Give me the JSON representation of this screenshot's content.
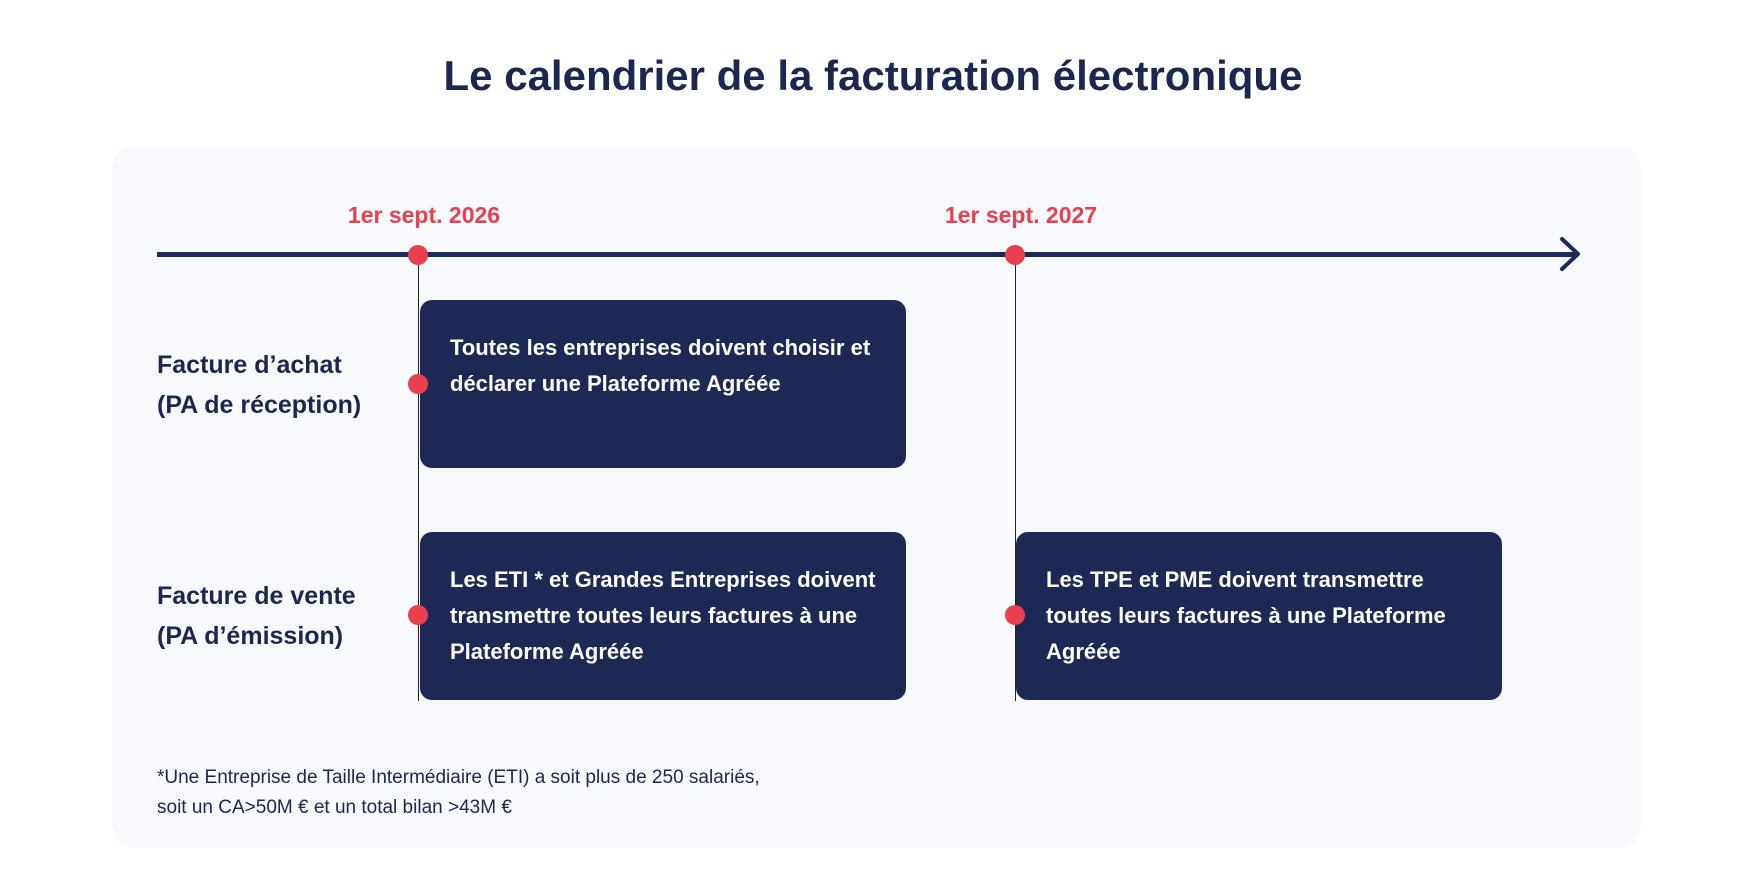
{
  "title": "Le calendrier de la facturation électronique",
  "colors": {
    "accent": "#e8404f",
    "navy": "#1d2855",
    "panel": "#f7f9fd"
  },
  "timeline": {
    "dates": [
      "1er sept. 2026",
      "1er sept. 2027"
    ]
  },
  "rows": [
    {
      "label_line1": "Facture d’achat",
      "label_line2": "(PA de réception)"
    },
    {
      "label_line1": "Facture de vente",
      "label_line2": "(PA d’émission)"
    }
  ],
  "events": [
    {
      "text": "Toutes les entreprises doivent choisir et déclarer une Plateforme Agréée"
    },
    {
      "text": "Les ETI * et Grandes Entreprises doivent transmettre toutes leurs factures à une Plateforme Agréée"
    },
    {
      "text": "Les TPE et PME doivent transmettre toutes leurs factures à une Plateforme Agréée"
    }
  ],
  "footnote": {
    "line1": "*Une Entreprise de Taille Intermédiaire (ETI) a soit plus de 250 salariés,",
    "line2": "soit un CA>50M € et un total bilan >43M €"
  }
}
